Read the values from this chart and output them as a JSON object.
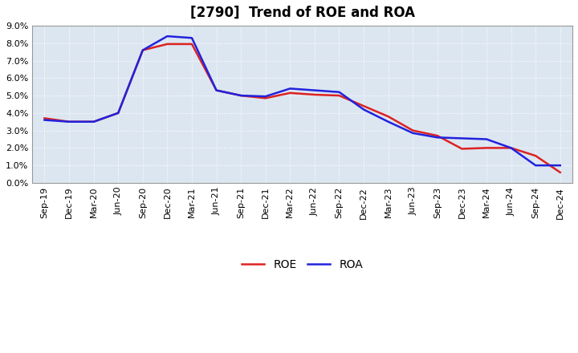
{
  "title": "[2790]  Trend of ROE and ROA",
  "x_labels": [
    "Sep-19",
    "Dec-19",
    "Mar-20",
    "Jun-20",
    "Sep-20",
    "Dec-20",
    "Mar-21",
    "Jun-21",
    "Sep-21",
    "Dec-21",
    "Mar-22",
    "Jun-22",
    "Sep-22",
    "Dec-22",
    "Mar-23",
    "Jun-23",
    "Sep-23",
    "Dec-23",
    "Mar-24",
    "Jun-24",
    "Sep-24",
    "Dec-24"
  ],
  "roe": [
    3.7,
    3.5,
    3.5,
    4.0,
    7.6,
    7.95,
    7.95,
    5.3,
    5.0,
    4.85,
    5.15,
    5.05,
    5.0,
    4.4,
    3.8,
    3.0,
    2.7,
    1.95,
    2.0,
    2.0,
    1.55,
    0.6
  ],
  "roa": [
    3.6,
    3.5,
    3.5,
    4.0,
    7.6,
    8.4,
    8.3,
    5.3,
    5.0,
    4.95,
    5.4,
    5.3,
    5.2,
    4.2,
    3.5,
    2.85,
    2.6,
    2.55,
    2.5,
    2.0,
    1.0,
    1.0
  ],
  "roe_color": "#dd2222",
  "roa_color": "#2222dd",
  "ylim": [
    0.0,
    9.0
  ],
  "yticks": [
    0.0,
    1.0,
    2.0,
    3.0,
    4.0,
    5.0,
    6.0,
    7.0,
    8.0,
    9.0
  ],
  "background_color": "#ffffff",
  "plot_bg_color": "#dce6f1",
  "grid_color": "#ffffff",
  "legend_roe": "ROE",
  "legend_roa": "ROA",
  "title_fontsize": 12,
  "axis_fontsize": 8,
  "legend_fontsize": 10,
  "line_width": 1.8
}
